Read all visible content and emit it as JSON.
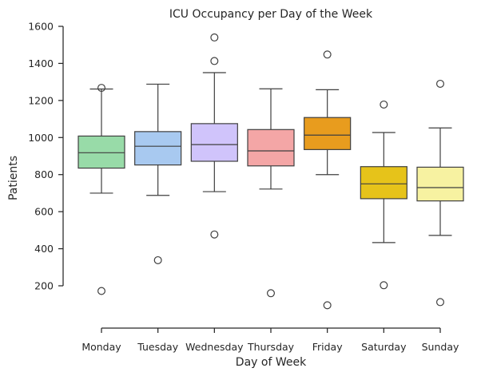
{
  "chart_data": {
    "type": "box",
    "title": "ICU Occupancy per Day of the Week",
    "xlabel": "Day of Week",
    "ylabel": "Patients",
    "ylim": [
      0,
      1600
    ],
    "yticks": [
      200,
      400,
      600,
      800,
      1000,
      1200,
      1400,
      1600
    ],
    "grid": false,
    "categories": [
      "Monday",
      "Tuesday",
      "Wednesday",
      "Thursday",
      "Friday",
      "Saturday",
      "Sunday"
    ],
    "colors": [
      "#98dba8",
      "#a8c9f0",
      "#d0c4fb",
      "#f4a6a6",
      "#e89c1e",
      "#e6c31a",
      "#f7f2a1"
    ],
    "boxes": [
      {
        "whislo": 700,
        "q1": 835,
        "med": 918,
        "q3": 1008,
        "whishi": 1262,
        "fliers": [
          1268,
          172
        ]
      },
      {
        "whislo": 688,
        "q1": 852,
        "med": 953,
        "q3": 1032,
        "whishi": 1288,
        "fliers": [
          338
        ]
      },
      {
        "whislo": 708,
        "q1": 872,
        "med": 962,
        "q3": 1075,
        "whishi": 1350,
        "fliers": [
          1540,
          1413,
          477
        ]
      },
      {
        "whislo": 722,
        "q1": 847,
        "med": 928,
        "q3": 1043,
        "whishi": 1263,
        "fliers": [
          160
        ]
      },
      {
        "whislo": 800,
        "q1": 935,
        "med": 1013,
        "q3": 1108,
        "whishi": 1258,
        "fliers": [
          1448,
          95
        ]
      },
      {
        "whislo": 433,
        "q1": 670,
        "med": 750,
        "q3": 843,
        "whishi": 1027,
        "fliers": [
          1178,
          203
        ]
      },
      {
        "whislo": 472,
        "q1": 658,
        "med": 730,
        "q3": 840,
        "whishi": 1052,
        "fliers": [
          1290,
          112
        ]
      }
    ]
  }
}
